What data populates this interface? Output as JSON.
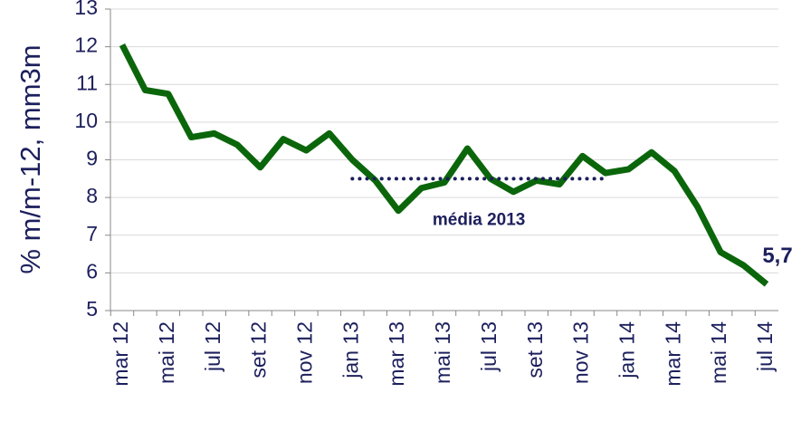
{
  "chart_data": {
    "type": "line",
    "y_label": "% m/m-12, mm3m",
    "categories": [
      "mar 12",
      null,
      "mai 12",
      null,
      "jul 12",
      null,
      "set 12",
      null,
      "nov 12",
      null,
      "jan 13",
      null,
      "mar 13",
      null,
      "mai 13",
      null,
      "jul 13",
      null,
      "set 13",
      null,
      "nov 13",
      null,
      "jan 14",
      null,
      "mar 14",
      null,
      "mai 14",
      null,
      "jul 14"
    ],
    "series": [
      {
        "name": null,
        "color": "#0b660b",
        "style": "solid",
        "values": [
          12.05,
          10.85,
          10.75,
          9.6,
          9.7,
          9.4,
          8.8,
          9.55,
          9.25,
          9.7,
          9.0,
          8.45,
          7.65,
          8.25,
          8.4,
          9.3,
          8.5,
          8.15,
          8.45,
          8.35,
          9.1,
          8.65,
          8.75,
          9.2,
          8.7,
          7.75,
          6.55,
          6.2,
          5.7
        ],
        "value_labels": [
          null,
          null,
          null,
          null,
          null,
          null,
          null,
          null,
          null,
          null,
          null,
          null,
          null,
          null,
          null,
          null,
          null,
          null,
          null,
          null,
          null,
          null,
          null,
          null,
          null,
          null,
          null,
          null,
          "5,7"
        ]
      },
      {
        "name": "média 2013",
        "color": "#1c1f5c",
        "style": "dotted",
        "values": [
          null,
          null,
          null,
          null,
          null,
          null,
          null,
          null,
          null,
          null,
          8.5,
          8.5,
          8.5,
          8.5,
          8.5,
          8.5,
          8.5,
          8.5,
          8.5,
          8.5,
          8.5,
          8.5,
          null,
          null,
          null,
          null,
          null,
          null,
          null
        ]
      }
    ],
    "ylim": [
      5,
      13
    ],
    "yticks": [
      5,
      6,
      7,
      8,
      9,
      10,
      11,
      12,
      13
    ],
    "grid": true
  }
}
